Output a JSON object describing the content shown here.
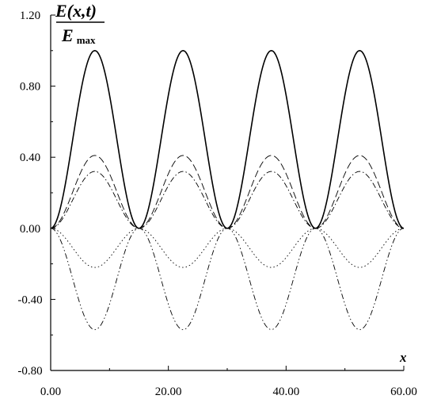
{
  "chart_data": {
    "type": "line",
    "xlabel": "x",
    "ylabel": {
      "numerator": "E(x,t)",
      "denominator_main": "E",
      "denominator_sub": "max"
    },
    "xlim": [
      0,
      60
    ],
    "ylim": [
      -0.8,
      1.2
    ],
    "xticks": [
      "0.00",
      "20.00",
      "40.00",
      "60.00"
    ],
    "yticks": [
      "1.20",
      "0.80",
      "0.40",
      "0.00",
      "-0.40",
      "-0.80"
    ],
    "xtick_values": [
      0,
      20,
      40,
      60
    ],
    "ytick_values": [
      1.2,
      0.8,
      0.4,
      0,
      -0.4,
      -0.8
    ],
    "grid": false,
    "x": [
      0,
      3.75,
      7.5,
      11.25,
      15,
      18.75,
      22.5,
      26.25,
      30,
      33.75,
      37.5,
      41.25,
      45,
      48.75,
      52.5,
      56.25,
      60
    ],
    "series": [
      {
        "style": "solid",
        "values": [
          0,
          0.5,
          1.0,
          0.5,
          0,
          0.5,
          1.0,
          0.5,
          0,
          0.5,
          1.0,
          0.5,
          0,
          0.5,
          1.0,
          0.5,
          0
        ]
      },
      {
        "style": "long-dash",
        "values": [
          0,
          0.205,
          0.41,
          0.205,
          0,
          0.205,
          0.41,
          0.205,
          0,
          0.205,
          0.41,
          0.205,
          0,
          0.205,
          0.41,
          0.205,
          0
        ]
      },
      {
        "style": "dash-dot",
        "values": [
          0,
          0.16,
          0.32,
          0.16,
          0,
          0.16,
          0.32,
          0.16,
          0,
          0.16,
          0.32,
          0.16,
          0,
          0.16,
          0.32,
          0.16,
          0
        ]
      },
      {
        "style": "dotted",
        "values": [
          0,
          -0.11,
          -0.22,
          -0.11,
          0,
          -0.11,
          -0.22,
          -0.11,
          0,
          -0.11,
          -0.22,
          -0.11,
          0,
          -0.11,
          -0.22,
          -0.11,
          0
        ]
      },
      {
        "style": "dash-dot-dot",
        "values": [
          0,
          -0.285,
          -0.57,
          -0.285,
          0,
          -0.285,
          -0.57,
          -0.285,
          0,
          -0.285,
          -0.57,
          -0.285,
          0,
          -0.285,
          -0.57,
          -0.285,
          0
        ]
      }
    ]
  }
}
